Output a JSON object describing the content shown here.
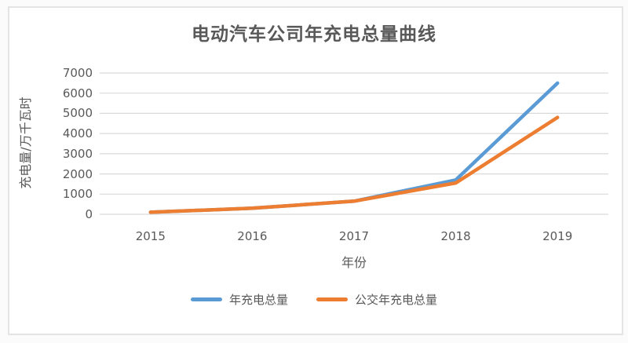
{
  "chart_data": {
    "type": "line",
    "title": "电动汽车公司年充电总量曲线",
    "xlabel": "年份",
    "ylabel": "充电量/万千瓦时",
    "categories": [
      "2015",
      "2016",
      "2017",
      "2018",
      "2019"
    ],
    "series": [
      {
        "name": "年充电总量",
        "color": "#5B9BD5",
        "values": [
          100,
          300,
          650,
          1700,
          6500
        ]
      },
      {
        "name": "公交年充电总量",
        "color": "#ED7D31",
        "values": [
          100,
          300,
          650,
          1550,
          4800
        ]
      }
    ],
    "ylim": [
      0,
      7000
    ],
    "yticks": [
      0,
      1000,
      2000,
      3000,
      4000,
      5000,
      6000,
      7000
    ],
    "grid": true,
    "legend_position": "bottom",
    "gridline_color": "#D9D9D9",
    "text_color": "#595959",
    "line_width": 4.5
  }
}
